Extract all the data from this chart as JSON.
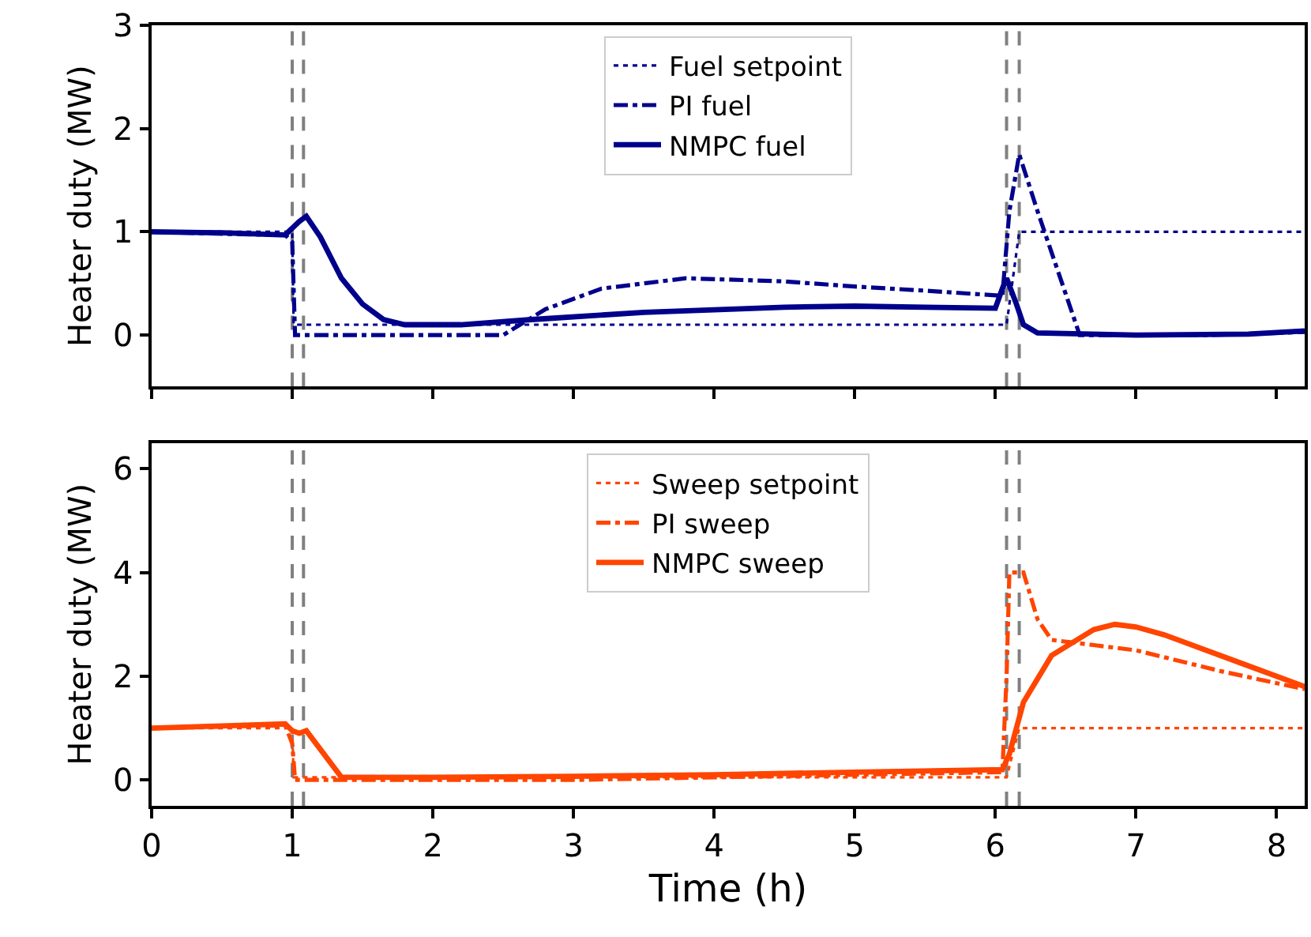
{
  "chart_data": [
    {
      "type": "line",
      "ylabel": "Heater duty (MW)",
      "xlim": [
        0,
        8.2
      ],
      "xticks": [
        0,
        1,
        2,
        3,
        4,
        5,
        6,
        7,
        8
      ],
      "ylim": [
        -0.5,
        3
      ],
      "yticks": [
        0,
        1,
        2,
        3
      ],
      "tick_labels": "y",
      "legend": "top",
      "grid": false,
      "series": [
        {
          "name": "Fuel setpoint",
          "color": "#00008b",
          "line_style": "dotted",
          "x": [
            0,
            1.0,
            1.01,
            6.08,
            6.17,
            8.2
          ],
          "values": [
            1,
            1,
            0.1,
            0.1,
            1,
            1
          ]
        },
        {
          "name": "PI fuel",
          "color": "#00008b",
          "line_style": "dashdot",
          "x": [
            0,
            0.5,
            0.95,
            1.0,
            1.02,
            1.5,
            2.0,
            2.5,
            2.8,
            3.2,
            3.8,
            4.5,
            5.0,
            5.5,
            6.05,
            6.1,
            6.17,
            6.3,
            6.45,
            6.6,
            7.0,
            7.5,
            8.0,
            8.2
          ],
          "values": [
            1,
            0.98,
            0.97,
            0.9,
            0,
            0,
            0,
            0,
            0.25,
            0.45,
            0.55,
            0.52,
            0.47,
            0.43,
            0.38,
            1.2,
            1.75,
            1.2,
            0.6,
            0,
            0,
            0,
            0.02,
            0.03
          ]
        },
        {
          "name": "NMPC fuel",
          "color": "#00008b",
          "line_style": "solid",
          "x": [
            0,
            0.5,
            0.95,
            1.05,
            1.1,
            1.2,
            1.35,
            1.5,
            1.65,
            1.8,
            2.2,
            2.7,
            3.5,
            4.5,
            5.0,
            5.5,
            6.0,
            6.05,
            6.08,
            6.15,
            6.2,
            6.3,
            7.0,
            7.8,
            8.2
          ],
          "values": [
            1,
            0.99,
            0.97,
            1.1,
            1.15,
            0.95,
            0.55,
            0.3,
            0.15,
            0.1,
            0.1,
            0.15,
            0.22,
            0.27,
            0.28,
            0.27,
            0.26,
            0.45,
            0.55,
            0.3,
            0.1,
            0.02,
            0,
            0.01,
            0.04
          ]
        }
      ],
      "ref_lines": [
        {
          "axis": "x",
          "value": 1.0,
          "color": "#808080",
          "line_style": "dashed"
        },
        {
          "axis": "x",
          "value": 1.08,
          "color": "#808080",
          "line_style": "dashed"
        },
        {
          "axis": "x",
          "value": 6.08,
          "color": "#808080",
          "line_style": "dashed"
        },
        {
          "axis": "x",
          "value": 6.17,
          "color": "#808080",
          "line_style": "dashed"
        }
      ]
    },
    {
      "type": "line",
      "ylabel": "Heater duty (MW)",
      "xlabel": "Time (h)",
      "xlim": [
        0,
        8.2
      ],
      "xticks": [
        0,
        1,
        2,
        3,
        4,
        5,
        6,
        7,
        8
      ],
      "ylim": [
        -0.5,
        6.5
      ],
      "yticks": [
        0,
        2,
        4,
        6
      ],
      "legend": "top",
      "grid": false,
      "series": [
        {
          "name": "Sweep setpoint",
          "color": "#ff4500",
          "line_style": "dotted",
          "x": [
            0,
            1.0,
            1.01,
            6.08,
            6.17,
            8.2
          ],
          "values": [
            1,
            1,
            0.05,
            0.05,
            1,
            1
          ]
        },
        {
          "name": "PI sweep",
          "color": "#ff4500",
          "line_style": "dashdot",
          "x": [
            0,
            0.5,
            0.95,
            1.0,
            1.02,
            2.0,
            3.0,
            4.0,
            5.0,
            6.05,
            6.08,
            6.1,
            6.2,
            6.3,
            6.4,
            6.7,
            7.0,
            7.6,
            8.2
          ],
          "values": [
            1,
            1.03,
            1.05,
            0.7,
            0,
            0,
            0,
            0.05,
            0.1,
            0.15,
            2.0,
            4,
            4,
            3.1,
            2.7,
            2.6,
            2.5,
            2.1,
            1.75
          ]
        },
        {
          "name": "NMPC sweep",
          "color": "#ff4500",
          "line_style": "solid",
          "x": [
            0,
            0.5,
            0.95,
            1.0,
            1.05,
            1.1,
            1.35,
            2.0,
            3.0,
            4.0,
            5.0,
            6.05,
            6.1,
            6.2,
            6.4,
            6.7,
            6.85,
            7.0,
            7.2,
            7.7,
            8.2
          ],
          "values": [
            1,
            1.04,
            1.08,
            0.95,
            0.9,
            0.95,
            0.05,
            0.05,
            0.07,
            0.1,
            0.15,
            0.2,
            0.5,
            1.5,
            2.4,
            2.9,
            3.0,
            2.95,
            2.8,
            2.3,
            1.8
          ]
        }
      ],
      "ref_lines": [
        {
          "axis": "x",
          "value": 1.0,
          "color": "#808080",
          "line_style": "dashed"
        },
        {
          "axis": "x",
          "value": 1.08,
          "color": "#808080",
          "line_style": "dashed"
        },
        {
          "axis": "x",
          "value": 6.08,
          "color": "#808080",
          "line_style": "dashed"
        },
        {
          "axis": "x",
          "value": 6.17,
          "color": "#808080",
          "line_style": "dashed"
        }
      ]
    }
  ]
}
